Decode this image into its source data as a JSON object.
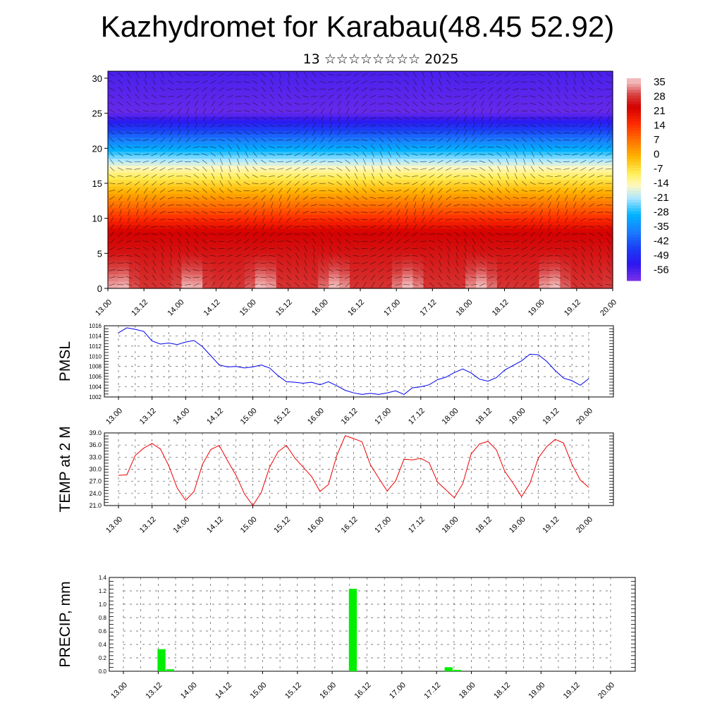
{
  "header": {
    "title": "Kazhydromet for Karabau(48.45 52.92)",
    "subtitle": "13 ☆☆☆☆☆☆☆☆ 2025"
  },
  "chart_data": [
    {
      "type": "heatmap",
      "description_role": "temperature cross-section with wind barbs",
      "x_ticks": [
        "13.00",
        "13.12",
        "14.00",
        "14.12",
        "15.00",
        "15.12",
        "16.00",
        "16.12",
        "17.00",
        "17.12",
        "18.00",
        "18.12",
        "19.00",
        "19.12",
        "20.00"
      ],
      "ylim": [
        0,
        31
      ],
      "y_ticks": [
        "0",
        "5",
        "10",
        "15",
        "20",
        "25",
        "30"
      ],
      "colorbar_labels": [
        "35",
        "28",
        "21",
        "14",
        "7",
        "0",
        "-7",
        "-14",
        "-21",
        "-28",
        "-35",
        "-42",
        "-49",
        "-56"
      ],
      "colorbar_range": [
        -60,
        38
      ],
      "colors": {
        "hot": "#d40000",
        "warm": "#ffdd33",
        "cold": "#00b4ff",
        "frigid": "#1a10ee",
        "top": "#7a30e8"
      }
    },
    {
      "type": "line",
      "ylabel": "PMSL",
      "ylim": [
        1002,
        1016
      ],
      "y_ticks": [
        "1016",
        "1014",
        "1012",
        "1010",
        "1008",
        "1006",
        "1004",
        "1002"
      ],
      "x_ticks": [
        "13.00",
        "13.12",
        "14.00",
        "14.12",
        "15.00",
        "15.12",
        "16.00",
        "16.12",
        "17.00",
        "17.12",
        "18.00",
        "18.12",
        "19.00",
        "19.12",
        "20.00"
      ],
      "color": "#0000ee",
      "series": [
        {
          "values": [
            1014.6,
            1015.6,
            1015.3,
            1014.9,
            1013.0,
            1012.4,
            1012.6,
            1012.3,
            1012.8,
            1013.1,
            1011.9,
            1010.1,
            1008.3,
            1007.9,
            1008.0,
            1007.7,
            1007.9,
            1008.3,
            1007.7,
            1006.2,
            1005.0,
            1004.9,
            1004.7,
            1004.9,
            1004.4,
            1005.0,
            1004.2,
            1003.3,
            1002.8,
            1002.5,
            1002.7,
            1002.5,
            1002.8,
            1003.2,
            1002.5,
            1003.8,
            1004.0,
            1004.4,
            1005.4,
            1005.9,
            1006.8,
            1007.5,
            1006.7,
            1005.5,
            1005.1,
            1005.8,
            1007.3,
            1008.2,
            1009.1,
            1010.4,
            1010.3,
            1009.0,
            1007.2,
            1005.7,
            1005.2,
            1004.3,
            1005.6
          ]
        }
      ]
    },
    {
      "type": "line",
      "ylabel": "TEMP at 2 M",
      "ylim": [
        21.0,
        39.0
      ],
      "y_ticks": [
        "39.0",
        "36.0",
        "33.0",
        "30.0",
        "27.0",
        "24.0",
        "21.0"
      ],
      "x_ticks": [
        "13.00",
        "13.12",
        "14.00",
        "14.12",
        "15.00",
        "15.12",
        "16.00",
        "16.12",
        "17.00",
        "17.12",
        "18.00",
        "18.12",
        "19.00",
        "19.12",
        "20.00"
      ],
      "color": "#ee0000",
      "series": [
        {
          "values": [
            28.5,
            28.6,
            33.4,
            35.2,
            36.4,
            35.0,
            30.8,
            25.3,
            22.3,
            24.5,
            31.2,
            34.9,
            35.9,
            32.1,
            28.5,
            23.9,
            21.0,
            24.2,
            30.5,
            34.3,
            35.9,
            32.8,
            30.5,
            28.2,
            24.5,
            26.2,
            33.4,
            38.3,
            37.6,
            36.8,
            31.1,
            27.8,
            24.6,
            27.1,
            32.5,
            32.3,
            32.7,
            31.6,
            26.8,
            24.9,
            22.9,
            26.4,
            33.8,
            36.3,
            36.9,
            34.8,
            29.5,
            26.5,
            23.2,
            26.5,
            32.8,
            35.6,
            37.4,
            36.5,
            31.2,
            27.3,
            25.5
          ]
        }
      ]
    },
    {
      "type": "bar",
      "ylabel": "PRECIP, mm",
      "ylim": [
        0.0,
        1.4
      ],
      "y_ticks": [
        "1.4",
        "1.2",
        "1.0",
        "0.8",
        "0.6",
        "0.4",
        "0.2",
        "0.0"
      ],
      "x_ticks": [
        "13.00",
        "13.12",
        "14.00",
        "14.12",
        "15.00",
        "15.12",
        "16.00",
        "16.12",
        "17.00",
        "17.12",
        "18.00",
        "18.12",
        "19.00",
        "19.12",
        "20.00"
      ],
      "color": "#00ee00",
      "bars": [
        {
          "x": 4,
          "value": 0.33
        },
        {
          "x": 5,
          "value": 0.03
        },
        {
          "x": 26,
          "value": 1.23
        },
        {
          "x": 37,
          "value": 0.06
        },
        {
          "x": 38,
          "value": 0.02
        }
      ]
    }
  ]
}
